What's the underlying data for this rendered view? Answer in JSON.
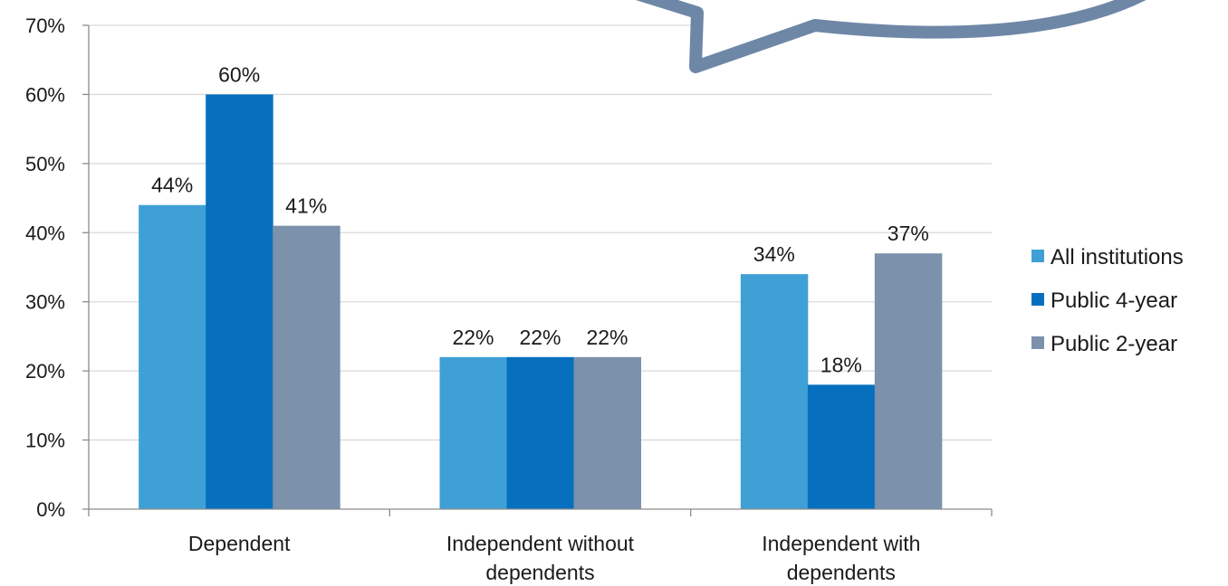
{
  "chart_data": {
    "type": "bar",
    "categories": [
      [
        "Dependent"
      ],
      [
        "Independent without",
        "dependents"
      ],
      [
        "Independent with",
        "dependents"
      ]
    ],
    "series": [
      {
        "name": "All institutions",
        "values": [
          44,
          22,
          34
        ],
        "labels": [
          "44%",
          "22%",
          "34%"
        ]
      },
      {
        "name": "Public 4-year",
        "values": [
          60,
          22,
          18
        ],
        "labels": [
          "60%",
          "22%",
          "18%"
        ]
      },
      {
        "name": "Public 2-year",
        "values": [
          41,
          22,
          37
        ],
        "labels": [
          "41%",
          "22%",
          "37%"
        ]
      }
    ],
    "y_ticks": [
      0,
      10,
      20,
      30,
      40,
      50,
      60,
      70
    ],
    "y_tick_labels": [
      "0%",
      "10%",
      "20%",
      "30%",
      "40%",
      "50%",
      "60%",
      "70%"
    ],
    "ylim": [
      0,
      70
    ],
    "grid": true,
    "legend_position": "right",
    "colors": [
      "#3FA0D6",
      "#0670BF",
      "#7B91AC"
    ]
  },
  "callout": {
    "stroke_color": "#6E87A6"
  }
}
